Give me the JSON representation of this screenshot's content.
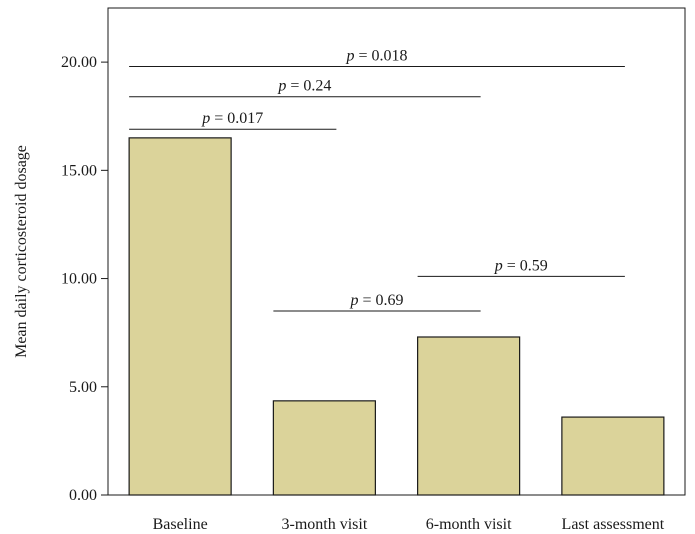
{
  "chart_data": {
    "type": "bar",
    "title": "",
    "xlabel": "",
    "ylabel": "Mean daily corticosteroid dosage",
    "ylim": [
      0,
      22.5
    ],
    "yticks": [
      0,
      5,
      10,
      15,
      20
    ],
    "ytick_labels": [
      "0.00",
      "5.00",
      "10.00",
      "15.00",
      "20.00"
    ],
    "categories": [
      "Baseline",
      "3-month visit",
      "6-month visit",
      "Last assessment"
    ],
    "values": [
      16.5,
      4.35,
      7.3,
      3.6
    ],
    "bar_color": "#dbd39a",
    "bar_edge_color": "#1a1a1a",
    "comparisons": [
      {
        "from": 0,
        "to": 1,
        "p_symbol": "p",
        "p_value": "= 0.017",
        "height": 16.9
      },
      {
        "from": 0,
        "to": 2,
        "p_symbol": "p",
        "p_value": "= 0.24",
        "height": 18.4
      },
      {
        "from": 0,
        "to": 3,
        "p_symbol": "p",
        "p_value": "= 0.018",
        "height": 19.8
      },
      {
        "from": 1,
        "to": 2,
        "p_symbol": "p",
        "p_value": "= 0.69",
        "height": 8.5
      },
      {
        "from": 2,
        "to": 3,
        "p_symbol": "p",
        "p_value": "= 0.59",
        "height": 10.1
      }
    ]
  }
}
